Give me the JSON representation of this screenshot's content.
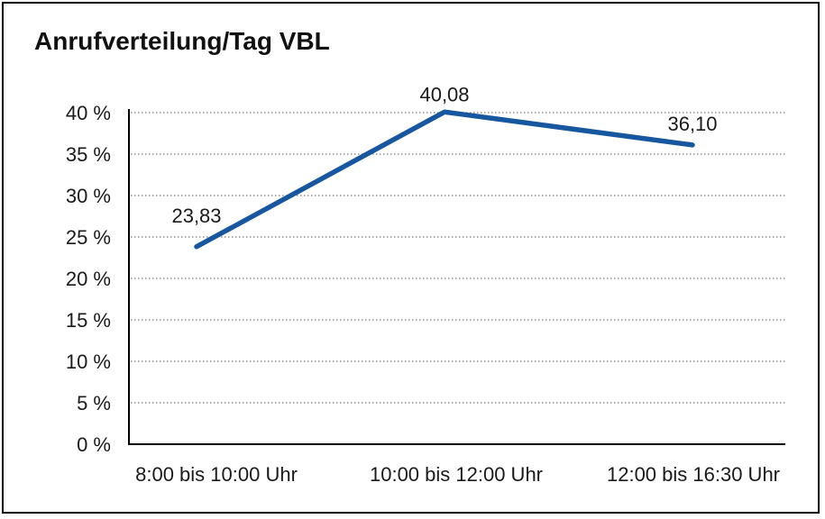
{
  "title": "Anrufverteilung/Tag VBL",
  "chart_data": {
    "type": "line",
    "title": "Anrufverteilung/Tag VBL",
    "categories": [
      "8:00 bis 10:00 Uhr",
      "10:00 bis 12:00 Uhr",
      "12:00 bis 16:30 Uhr"
    ],
    "series": [
      {
        "name": "Anrufverteilung/Tag VBL",
        "values": [
          23.83,
          40.08,
          36.1
        ],
        "point_labels": [
          "23,83",
          "40,08",
          "36,10"
        ],
        "color": "#1757a0"
      }
    ],
    "xlabel": "",
    "ylabel": "",
    "ylim": [
      0,
      40
    ],
    "ytick_step": 5,
    "ytick_labels": [
      "0 %",
      "5 %",
      "10 %",
      "15 %",
      "20 %",
      "25 %",
      "30 %",
      "35 %",
      "40 %"
    ],
    "grid": "horizontal-dotted",
    "legend_position": "none"
  },
  "colors": {
    "line": "#1757a0",
    "grid": "#7a7a7a",
    "axis": "#000000",
    "frame_border": "#000000",
    "background": "#ffffff",
    "text": "#1a1a1a"
  }
}
